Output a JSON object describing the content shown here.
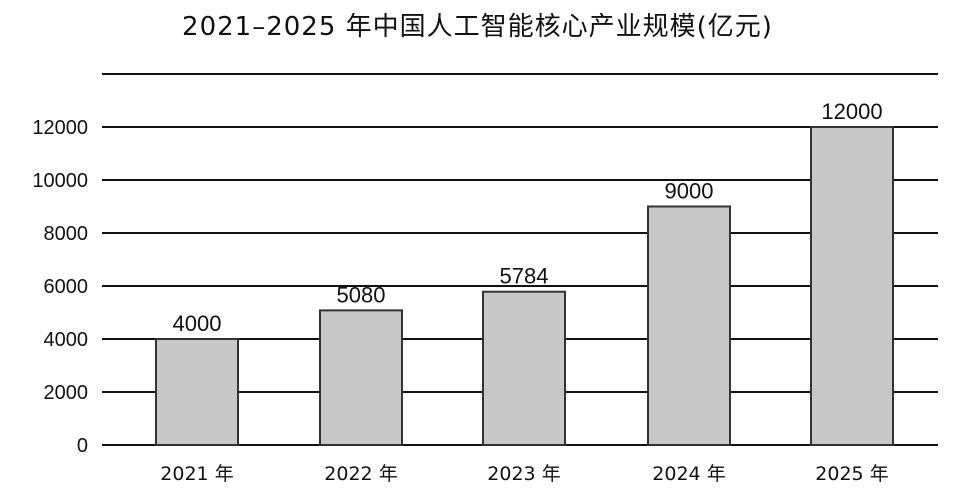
{
  "chart_data": {
    "type": "bar",
    "title": "2021–2025 年中国人工智能核心产业规模(亿元)",
    "categories": [
      "2021 年",
      "2022 年",
      "2023 年",
      "2024 年",
      "2025 年"
    ],
    "values": [
      4000,
      5080,
      5784,
      9000,
      12000
    ],
    "value_labels": [
      "4000",
      "5080",
      "5784",
      "9000",
      "12000"
    ],
    "y_ticks": [
      0,
      2000,
      4000,
      6000,
      8000,
      10000,
      12000
    ],
    "ylim": [
      0,
      14000
    ],
    "xlabel": "",
    "ylabel": "",
    "grid": true,
    "legend": "none",
    "colors": {
      "bar_fill": "#c8c8c8",
      "bar_stroke": "#333333",
      "grid": "#111111"
    }
  }
}
